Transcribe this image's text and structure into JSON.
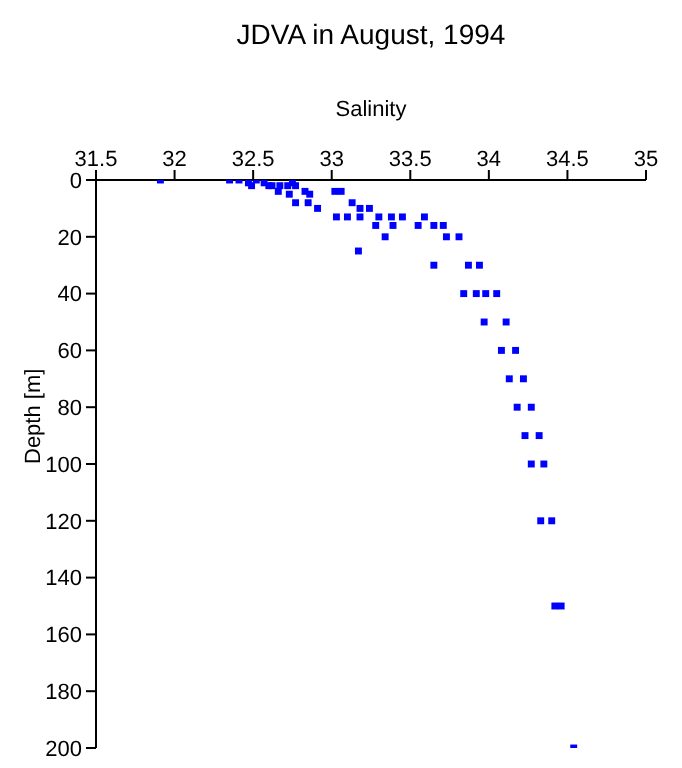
{
  "chart_data": {
    "type": "scatter",
    "title": "JDVA in August, 1994",
    "xlabel": "Salinity",
    "ylabel": "Depth [m]",
    "marker": "square",
    "grid": false,
    "legend": false,
    "xlim": [
      31.5,
      35
    ],
    "xticks": [
      31.5,
      32,
      32.5,
      33,
      33.5,
      34,
      34.5,
      35
    ],
    "ylim": [
      200,
      0
    ],
    "yticks": [
      0,
      20,
      40,
      60,
      80,
      100,
      120,
      140,
      160,
      180,
      200
    ],
    "series": [
      {
        "color": "#0000ff",
        "x": [
          31.91,
          32.35,
          32.41,
          32.52,
          32.47,
          32.57,
          32.75,
          32.49,
          32.6,
          32.62,
          32.67,
          32.72,
          32.77,
          32.66,
          32.83,
          33.02,
          33.06,
          32.73,
          32.86,
          32.77,
          32.85,
          33.13,
          32.91,
          33.18,
          33.24,
          33.03,
          33.1,
          33.18,
          33.3,
          33.38,
          33.45,
          33.59,
          33.28,
          33.39,
          33.55,
          33.65,
          33.71,
          33.34,
          33.73,
          33.81,
          33.17,
          33.65,
          33.87,
          33.94,
          33.84,
          33.92,
          33.98,
          34.05,
          33.97,
          34.11,
          34.08,
          34.17,
          34.13,
          34.22,
          34.18,
          34.27,
          34.23,
          34.32,
          34.27,
          34.35,
          34.33,
          34.4,
          34.42,
          34.46,
          34.54
        ],
        "values": [
          0,
          0,
          0,
          0,
          1,
          1,
          1,
          2,
          2,
          2,
          2,
          2,
          2,
          4,
          4,
          4,
          4,
          5,
          5,
          8,
          8,
          8,
          10,
          10,
          10,
          13,
          13,
          13,
          13,
          13,
          13,
          13,
          16,
          16,
          16,
          16,
          16,
          20,
          20,
          20,
          25,
          30,
          30,
          30,
          40,
          40,
          40,
          40,
          50,
          50,
          60,
          60,
          70,
          70,
          80,
          80,
          90,
          90,
          100,
          100,
          120,
          120,
          150,
          150,
          200
        ]
      }
    ]
  }
}
